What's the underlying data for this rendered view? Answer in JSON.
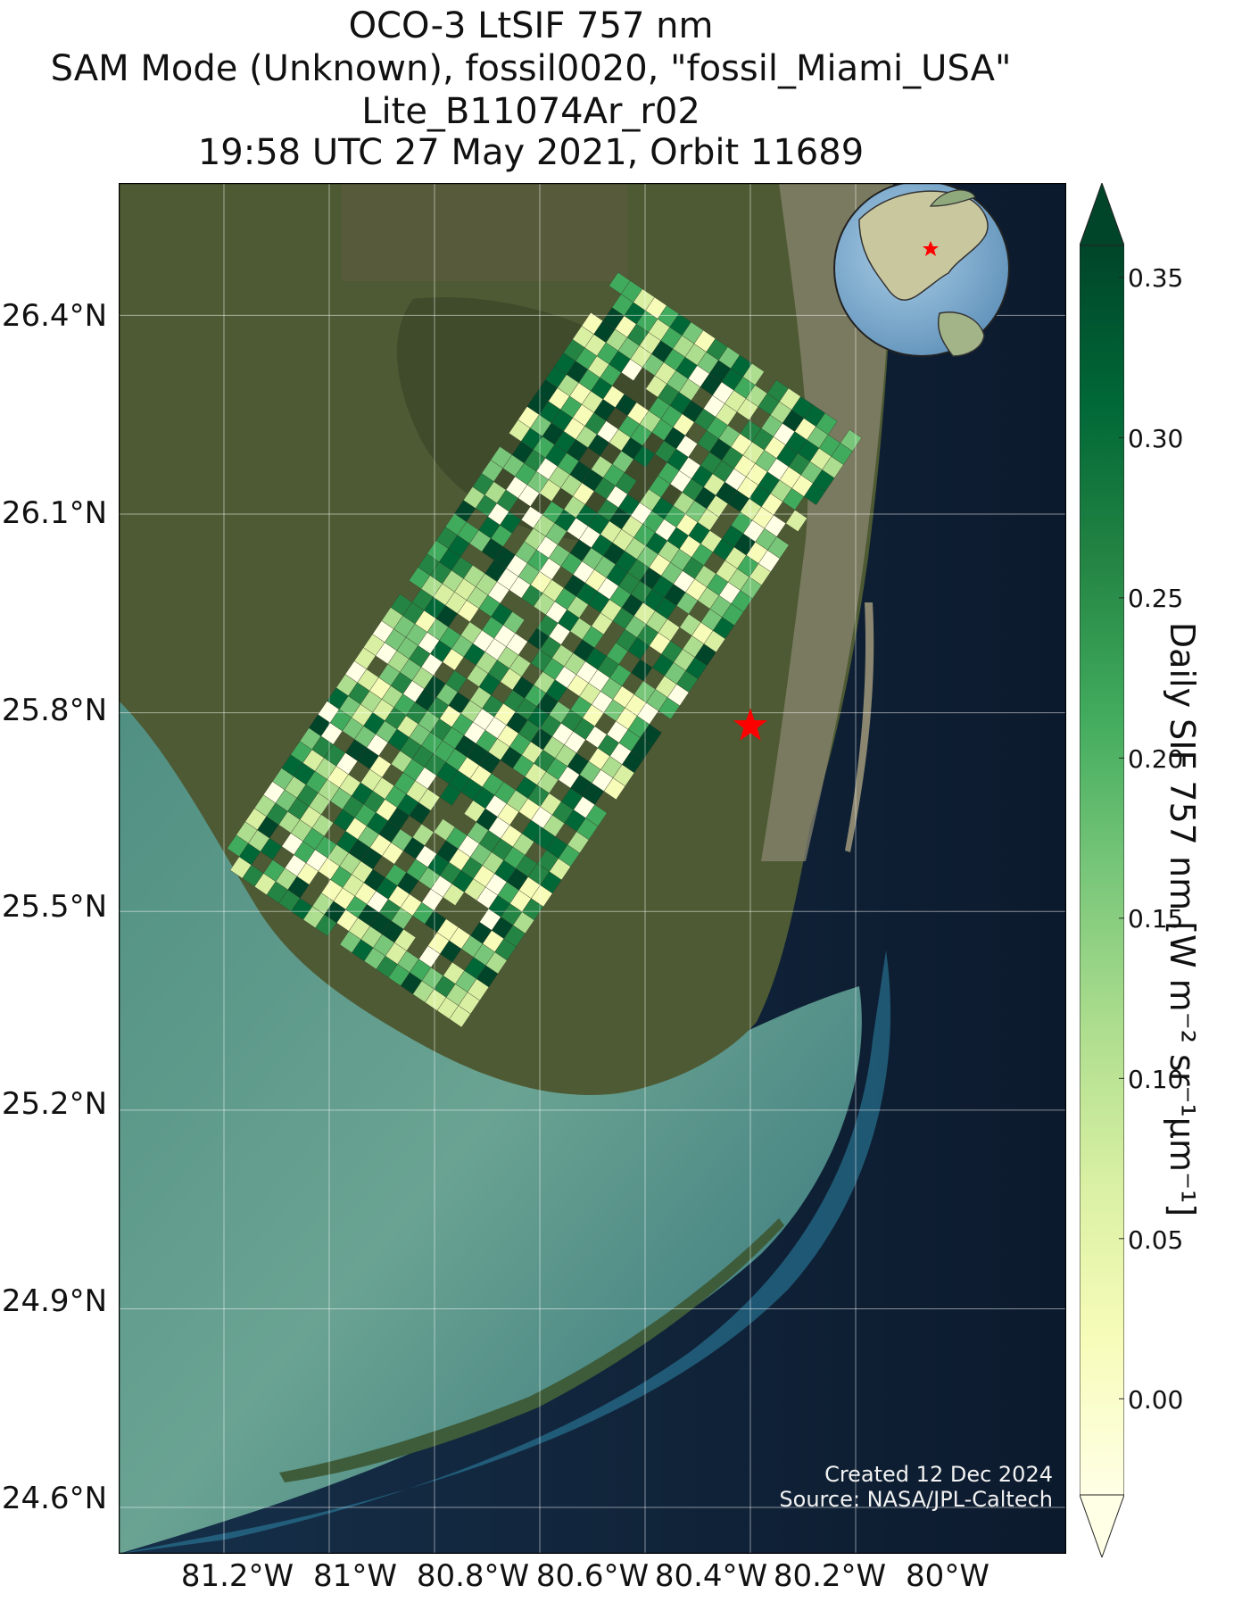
{
  "title": {
    "line1": "OCO-3 LtSIF 757 nm",
    "line2": "SAM Mode (Unknown), fossil0020, \"fossil_Miami_USA\"",
    "line3": "Lite_B11074Ar_r02",
    "line4": "19:58 UTC 27 May 2021, Orbit 11689"
  },
  "map": {
    "lon_range": [
      -81.4,
      -79.6
    ],
    "lat_range": [
      24.53,
      26.6
    ],
    "lon_ticks": [
      "81.2°W",
      "81°W",
      "80.8°W",
      "80.6°W",
      "80.4°W",
      "80.2°W",
      "80°W"
    ],
    "lat_ticks": [
      "26.4°N",
      "26.1°N",
      "25.8°N",
      "25.5°N",
      "25.2°N",
      "24.9°N",
      "24.6°N"
    ],
    "grid": true,
    "target_marker": {
      "lon": -80.2,
      "lat": 25.78,
      "color": "#ff0000",
      "icon": "star-icon"
    },
    "colors": {
      "land": "#4e5a33",
      "ocean": "#0e1c30",
      "shallow_water": "#5fa08c",
      "coastline": "#000000"
    }
  },
  "inset_globe": {
    "center": "North America",
    "marker_icon": "star-icon",
    "marker_color": "#ff0000"
  },
  "colorbar": {
    "label": "Daily SIF 757 nm [W m⁻² sr⁻¹μm⁻¹]",
    "ticks": [
      "0.35",
      "0.30",
      "0.25",
      "0.20",
      "0.15",
      "0.10",
      "0.05",
      "0.00"
    ],
    "range": [
      -0.03,
      0.36
    ],
    "colormap": "YlGn",
    "extend": "both"
  },
  "credits": {
    "created": "Created 12 Dec 2024",
    "source": "Source: NASA/JPL-Caltech"
  },
  "chart_data": {
    "type": "heatmap",
    "title": "OCO-3 LtSIF 757 nm",
    "variable": "Daily SIF 757 nm",
    "units": "W m⁻² sr⁻¹μm⁻¹",
    "swath": {
      "description": "SAM-mode soundings over Miami / Everglades",
      "lon_extent": [
        -81.0,
        -80.0
      ],
      "lat_extent": [
        25.17,
        26.34
      ],
      "value_range": [
        0.0,
        0.35
      ]
    }
  }
}
